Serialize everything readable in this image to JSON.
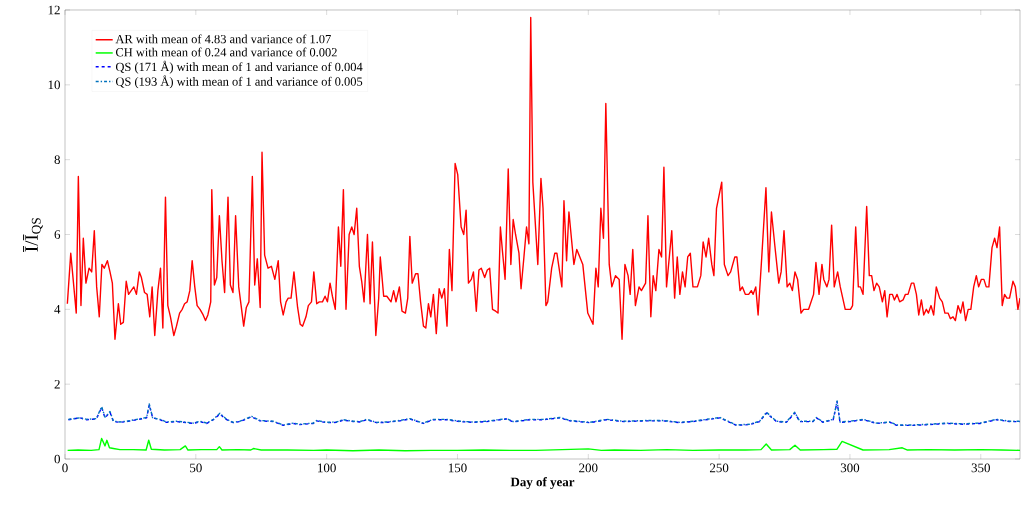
{
  "chart_data": {
    "type": "line",
    "xlabel": "Day of year",
    "ylabel": "Ī/Ī$_{QS}$",
    "xlim": [
      0,
      365
    ],
    "ylim": [
      0,
      12
    ],
    "xticks": [
      0,
      50,
      100,
      150,
      200,
      250,
      300,
      350
    ],
    "yticks": [
      0,
      2,
      4,
      6,
      8,
      10,
      12
    ],
    "legend": "top left",
    "grid": false,
    "series": [
      {
        "name": "AR with mean of 4.83 and variance of 1.07",
        "color": "#ff0000",
        "line_style": "solid",
        "x": [
          0.9,
          2.2,
          4.3,
          5.1,
          6.1,
          7.0,
          8,
          9.2,
          10.2,
          11.2,
          12.1,
          13.1,
          14.1,
          15,
          16.2,
          17.2,
          18.1,
          19.1,
          20.4,
          21.3,
          22.3,
          23.4,
          24.3,
          25.3,
          26.3,
          27.3,
          28.4,
          29.2,
          30.4,
          31.4,
          32.4,
          33.3,
          34.3,
          35.5,
          36.5,
          37.4,
          38.4,
          39.3,
          40.3,
          41.6,
          42.6,
          43.8,
          44.8,
          45.7,
          46.7,
          47.7,
          48.6,
          49.6,
          50.5,
          51.6,
          52.8,
          53.7,
          54.6,
          55.7,
          56.1,
          57.1,
          58,
          59,
          60,
          61,
          62.3,
          63.2,
          64.2,
          65.2,
          66.4,
          67.4,
          68.3,
          69.3,
          70.3,
          71.6,
          72.5,
          73.5,
          74.6,
          75.3,
          76.3,
          77.6,
          78.9,
          80.2,
          81.5,
          82.4,
          83.4,
          84.5,
          85.3,
          86.4,
          87.5,
          88.9,
          89.9,
          90.8,
          92.1,
          93,
          94.2,
          95.1,
          96.2,
          97.2,
          98.4,
          99.4,
          100.3,
          101.3,
          102.2,
          103.3,
          104.5,
          105.4,
          106.4,
          107.4,
          108.6,
          109.6,
          110.5,
          111.5,
          112.5,
          113.4,
          114.3,
          115.6,
          116.6,
          117.5,
          118.8,
          119.9,
          120.5,
          121.8,
          123,
          124.6,
          125.6,
          126.5,
          127.8,
          128.8,
          130.1,
          131,
          131.8,
          132.7,
          134,
          134.9,
          135.9,
          137,
          137.9,
          138.9,
          139.8,
          140.8,
          141.9,
          143,
          144,
          145,
          146,
          146.9,
          147.9,
          149.1,
          150.1,
          151.4,
          152.4,
          153.3,
          154.2,
          155.3,
          156.1,
          157.2,
          158.2,
          159.1,
          160.4,
          161.4,
          162.3,
          163.4,
          164.6,
          165.5,
          166.4,
          167.2,
          168.2,
          169.4,
          170.4,
          171.3,
          172.2,
          173.5,
          174.3,
          175.4,
          176.4,
          177.3,
          178,
          178.8,
          180.7,
          181.9,
          182.7,
          183.8,
          184.5,
          186,
          187.2,
          188,
          189.9,
          190.7,
          191.7,
          192.6,
          194.5,
          195.6,
          197.9,
          199.8,
          201.8,
          202.9,
          203.8,
          204.8,
          205.8,
          206.7,
          208,
          209,
          210.4,
          211.8,
          212.9,
          214,
          215.2,
          216,
          217,
          218,
          219.4,
          220.3,
          221.9,
          222.8,
          223.9,
          224.8,
          225.8,
          227,
          228,
          228.9,
          229.9,
          231.9,
          233,
          234,
          235,
          236,
          237,
          238,
          239,
          240,
          241.7,
          243,
          243.9,
          245,
          246,
          247.2,
          248,
          249,
          251,
          252,
          253.4,
          254.4,
          256,
          256.8,
          258,
          258.9,
          260,
          261.3,
          262.3,
          263,
          264,
          264.9,
          266.3,
          267.9,
          269,
          270,
          271.3,
          272.8,
          273.7,
          274.8,
          276,
          277,
          278,
          279,
          280,
          281.3,
          282.3,
          284.2,
          286.1,
          287,
          288.2,
          289.3,
          290,
          291.2,
          292,
          293,
          294,
          295.3,
          296.3,
          298.2,
          300.2,
          301,
          302.2,
          303.2,
          304,
          305,
          306.4,
          307.4,
          308.3,
          309.2,
          310.2,
          311.2,
          312.4,
          313.3,
          314.2,
          315.2,
          316.2,
          317,
          318,
          319,
          320.3,
          321.2,
          322.2,
          323.5,
          324.4,
          325.4,
          326.3,
          327.3,
          328.2,
          329.2,
          330,
          331,
          332,
          333,
          334.3,
          335.3,
          336.3,
          337.5,
          338.4,
          339.4,
          340.3,
          341.3,
          342.3,
          343.2,
          344.2,
          345.2,
          346.2,
          347.3,
          348.3,
          349.2,
          350.2,
          351.2,
          352.1,
          353.1,
          354.3,
          355.3,
          356.2,
          357.2,
          358.2,
          359.1,
          360,
          361,
          362.3,
          363.2,
          364.2,
          365
        ],
        "values": [
          4.15,
          5.5,
          3.9,
          7.55,
          4.1,
          5.9,
          4.7,
          5.1,
          5.0,
          6.1,
          4.6,
          3.8,
          5.2,
          5.1,
          5.3,
          5.0,
          4.7,
          3.2,
          4.15,
          3.6,
          3.65,
          4.75,
          4.4,
          4.5,
          4.6,
          4.4,
          5.0,
          4.85,
          4.45,
          4.4,
          3.8,
          4.6,
          3.3,
          4.5,
          5.1,
          3.5,
          7.0,
          4.1,
          3.8,
          3.3,
          3.55,
          3.9,
          4.0,
          4.15,
          4.2,
          4.5,
          5.3,
          4.6,
          4.1,
          4.0,
          3.85,
          3.7,
          3.85,
          4.2,
          7.2,
          4.65,
          4.85,
          6.5,
          5.3,
          4.45,
          7.0,
          4.65,
          4.45,
          6.5,
          4.6,
          4.05,
          3.55,
          4.05,
          4.2,
          7.55,
          4.65,
          5.35,
          4.05,
          8.2,
          5.45,
          5.1,
          5.15,
          4.8,
          5.3,
          4.2,
          3.85,
          4.2,
          4.3,
          4.3,
          5.0,
          4.05,
          3.6,
          3.55,
          3.8,
          4.1,
          4.2,
          5.0,
          4.15,
          4.2,
          4.2,
          4.35,
          4.2,
          4.7,
          4.35,
          4.0,
          6.2,
          5.15,
          7.2,
          4.0,
          6.0,
          6.2,
          6.0,
          6.7,
          5.15,
          4.75,
          4.2,
          6.0,
          4.15,
          5.8,
          3.3,
          4.3,
          5.4,
          4.35,
          4.35,
          4.2,
          4.5,
          4.2,
          4.6,
          3.95,
          3.9,
          4.3,
          5.95,
          4.7,
          4.95,
          4.95,
          4.2,
          3.55,
          3.5,
          4.15,
          3.8,
          4.4,
          3.35,
          4.55,
          4.3,
          4.55,
          3.55,
          5.6,
          4.5,
          7.9,
          7.6,
          6.2,
          6.0,
          6.65,
          4.7,
          4.8,
          5.0,
          3.95,
          5.05,
          5.1,
          4.85,
          5.05,
          5.1,
          4.0,
          3.95,
          3.9,
          6.2,
          5.55,
          4.8,
          7.75,
          5.2,
          6.4,
          6.0,
          5.5,
          4.55,
          5.4,
          6.2,
          5.75,
          11.8,
          7.4,
          5.2,
          7.5,
          6.7,
          4.1,
          4.2,
          5.1,
          5.5,
          5.5,
          4.6,
          6.9,
          5.3,
          6.6,
          5.2,
          5.6,
          5.2,
          3.9,
          3.6,
          5.1,
          4.6,
          6.7,
          5.9,
          9.5,
          5.2,
          4.6,
          4.9,
          4.8,
          3.2,
          5.2,
          4.9,
          4.4,
          5.6,
          4.1,
          4.6,
          4.5,
          4.7,
          6.5,
          3.8,
          4.9,
          4.5,
          5.6,
          5.4,
          7.8,
          4.6,
          6.1,
          4.3,
          5.4,
          4.4,
          5.0,
          4.6,
          5.4,
          5.5,
          4.6,
          4.6,
          4.9,
          5.8,
          5.4,
          5.9,
          5.2,
          4.9,
          6.7,
          7.4,
          5.2,
          4.9,
          5.0,
          5.4,
          5.4,
          4.5,
          4.6,
          4.4,
          4.4,
          4.5,
          4.4,
          4.6,
          3.85,
          5.4,
          7.25,
          5.0,
          6.6,
          5.7,
          4.7,
          5.0,
          6.1,
          4.6,
          4.7,
          4.5,
          5.0,
          4.8,
          3.9,
          4.0,
          4.0,
          4.4,
          5.25,
          4.4,
          5.2,
          4.8,
          4.6,
          4.8,
          6.25,
          4.6,
          5.0,
          4.6,
          4.0,
          4.0,
          4.1,
          6.2,
          4.6,
          4.6,
          4.4,
          6.75,
          4.9,
          4.9,
          4.5,
          4.7,
          4.6,
          4.2,
          4.5,
          3.8,
          4.4,
          4.4,
          4.25,
          4.4,
          4.2,
          4.25,
          4.4,
          4.4,
          4.7,
          4.7,
          4.4,
          3.85,
          4.25,
          3.85,
          4.0,
          3.9,
          4.1,
          3.85,
          4.6,
          4.3,
          4.2,
          3.9,
          3.9,
          3.75,
          3.8,
          3.7,
          4.1,
          3.9,
          4.2,
          3.7,
          4.0,
          4.0,
          4.6,
          4.9,
          4.6,
          4.8,
          4.8,
          4.6,
          4.6,
          5.65,
          5.9,
          5.65,
          6.2,
          4.1,
          4.4,
          4.3,
          4.3,
          4.75,
          4.6,
          4.0,
          4.3
        ]
      },
      {
        "name": "CH with mean of 0.24 and variance of 0.002",
        "color": "#00ff00",
        "line_style": "solid",
        "x": [
          1,
          5,
          10,
          13,
          14,
          15.3,
          16,
          17,
          18.5,
          21,
          26,
          31,
          32,
          33,
          38,
          44,
          46,
          47,
          52,
          58,
          59,
          60,
          66,
          71,
          72,
          75,
          85,
          95,
          100,
          110,
          120,
          130,
          140,
          150,
          160,
          170,
          180,
          190,
          200,
          205,
          210,
          220,
          230,
          240,
          250,
          260,
          266,
          268,
          270,
          277,
          279,
          281,
          290,
          295,
          297,
          305,
          315,
          320,
          322,
          330,
          340,
          350,
          358,
          365
        ],
        "values": [
          0.23,
          0.24,
          0.23,
          0.25,
          0.55,
          0.35,
          0.5,
          0.3,
          0.28,
          0.25,
          0.25,
          0.24,
          0.5,
          0.26,
          0.24,
          0.25,
          0.35,
          0.24,
          0.25,
          0.25,
          0.33,
          0.24,
          0.25,
          0.24,
          0.28,
          0.24,
          0.24,
          0.23,
          0.24,
          0.22,
          0.24,
          0.22,
          0.23,
          0.23,
          0.24,
          0.23,
          0.23,
          0.25,
          0.27,
          0.23,
          0.24,
          0.23,
          0.25,
          0.23,
          0.24,
          0.24,
          0.25,
          0.4,
          0.24,
          0.25,
          0.37,
          0.24,
          0.25,
          0.26,
          0.47,
          0.24,
          0.25,
          0.3,
          0.24,
          0.25,
          0.24,
          0.25,
          0.24,
          0.23
        ]
      },
      {
        "name": "QS (171 Å) with mean of 1 and variance of 0.004",
        "color": "#0000ff",
        "line_style": "dashed",
        "x": [
          1.3,
          5.7,
          8.3,
          12,
          14,
          15.3,
          17.2,
          18.5,
          21,
          23.6,
          27.4,
          31.2,
          32.2,
          33.5,
          36.3,
          38.8,
          42.7,
          46.5,
          49.1,
          51.6,
          54.2,
          56.7,
          59.2,
          61.8,
          64.3,
          66.9,
          71.3,
          74.5,
          79.6,
          83.4,
          87.3,
          89.8,
          94.9,
          96.2,
          100,
          103.8,
          106.3,
          110.2,
          112.7,
          115.3,
          119.1,
          122.9,
          128,
          131.8,
          136.9,
          140.7,
          145.8,
          150.9,
          156,
          161.1,
          168.7,
          171.3,
          177.6,
          182.8,
          189.2,
          193,
          200.6,
          207,
          213.4,
          222.3,
          228.6,
          235,
          240.1,
          250.3,
          256.6,
          261.7,
          265.5,
          268.1,
          271.9,
          275.7,
          278.9,
          280.8,
          285.9,
          287.2,
          289.7,
          293.6,
          295.1,
          296.2,
          300,
          305.1,
          310.2,
          315.3,
          317.8,
          324.2,
          330.6,
          336.9,
          343.3,
          349.7,
          356,
          361.1,
          365
        ],
        "values": [
          1.05,
          1.1,
          1.05,
          1.07,
          1.38,
          1.1,
          1.25,
          1.0,
          0.98,
          1.0,
          1.05,
          1.1,
          1.45,
          1.1,
          1.05,
          0.98,
          1.0,
          0.97,
          0.95,
          1.0,
          0.95,
          1.05,
          1.2,
          1.05,
          0.97,
          1.0,
          1.13,
          1.02,
          1.0,
          0.9,
          0.95,
          0.92,
          0.95,
          1.02,
          0.97,
          0.98,
          1.04,
          1.0,
          0.99,
          1.05,
          0.97,
          0.98,
          1.02,
          1.07,
          0.95,
          1.05,
          1.05,
          1.0,
          0.98,
          1.0,
          1.07,
          0.99,
          1.05,
          1.05,
          1.1,
          1.02,
          0.97,
          1.05,
          1.0,
          1.02,
          1.02,
          0.97,
          1.0,
          1.1,
          0.9,
          0.92,
          1.0,
          1.23,
          1.0,
          0.98,
          1.23,
          1.0,
          1.0,
          1.1,
          0.98,
          1.05,
          1.53,
          0.98,
          1.0,
          1.05,
          0.95,
          0.98,
          0.9,
          0.9,
          0.92,
          0.95,
          0.93,
          0.95,
          1.05,
          1.0,
          1.0
        ]
      },
      {
        "name": "QS (193 Å) with mean of 1 and variance of 0.005",
        "color": "#0072bd",
        "line_style": "dashdot",
        "x": [
          1.3,
          5.7,
          8.3,
          12,
          14,
          15.3,
          17.2,
          18.5,
          21,
          23.6,
          27.4,
          31.2,
          32.2,
          33.5,
          36.3,
          38.8,
          42.7,
          46.5,
          49.1,
          51.6,
          54.2,
          56.7,
          59.2,
          61.8,
          64.3,
          66.9,
          71.3,
          74.5,
          79.6,
          83.4,
          87.3,
          89.8,
          94.9,
          96.2,
          100,
          103.8,
          106.3,
          110.2,
          112.7,
          115.3,
          119.1,
          122.9,
          128,
          131.8,
          136.9,
          140.7,
          145.8,
          150.9,
          156,
          161.1,
          168.7,
          171.3,
          177.6,
          182.8,
          189.2,
          193,
          200.6,
          207,
          213.4,
          222.3,
          228.6,
          235,
          240.1,
          250.3,
          256.6,
          261.7,
          265.5,
          268.1,
          271.9,
          275.7,
          278.9,
          280.8,
          285.9,
          287.2,
          289.7,
          293.6,
          295.1,
          296.2,
          300,
          305.1,
          310.2,
          315.3,
          317.8,
          324.2,
          330.6,
          336.9,
          343.3,
          349.7,
          356,
          361.1,
          365
        ],
        "values": [
          1.06,
          1.1,
          1.06,
          1.08,
          1.4,
          1.12,
          1.27,
          1.01,
          0.99,
          1.01,
          1.06,
          1.11,
          1.47,
          1.1,
          1.06,
          0.99,
          1.01,
          0.98,
          0.96,
          1.01,
          0.96,
          1.06,
          1.22,
          1.06,
          0.98,
          1.01,
          1.14,
          1.03,
          1.01,
          0.91,
          0.96,
          0.93,
          0.96,
          1.03,
          0.98,
          0.99,
          1.05,
          1.01,
          1.0,
          1.06,
          0.98,
          0.99,
          1.03,
          1.08,
          0.96,
          1.06,
          1.06,
          1.01,
          0.99,
          1.01,
          1.08,
          1.0,
          1.06,
          1.06,
          1.11,
          1.03,
          0.98,
          1.06,
          1.01,
          1.03,
          1.03,
          0.98,
          1.01,
          1.11,
          0.91,
          0.93,
          1.01,
          1.25,
          1.01,
          0.99,
          1.25,
          1.01,
          1.01,
          1.11,
          0.99,
          1.06,
          1.55,
          0.99,
          1.01,
          1.06,
          0.96,
          0.99,
          0.91,
          0.91,
          0.93,
          0.96,
          0.94,
          0.96,
          1.06,
          1.01,
          1.01
        ]
      }
    ]
  }
}
